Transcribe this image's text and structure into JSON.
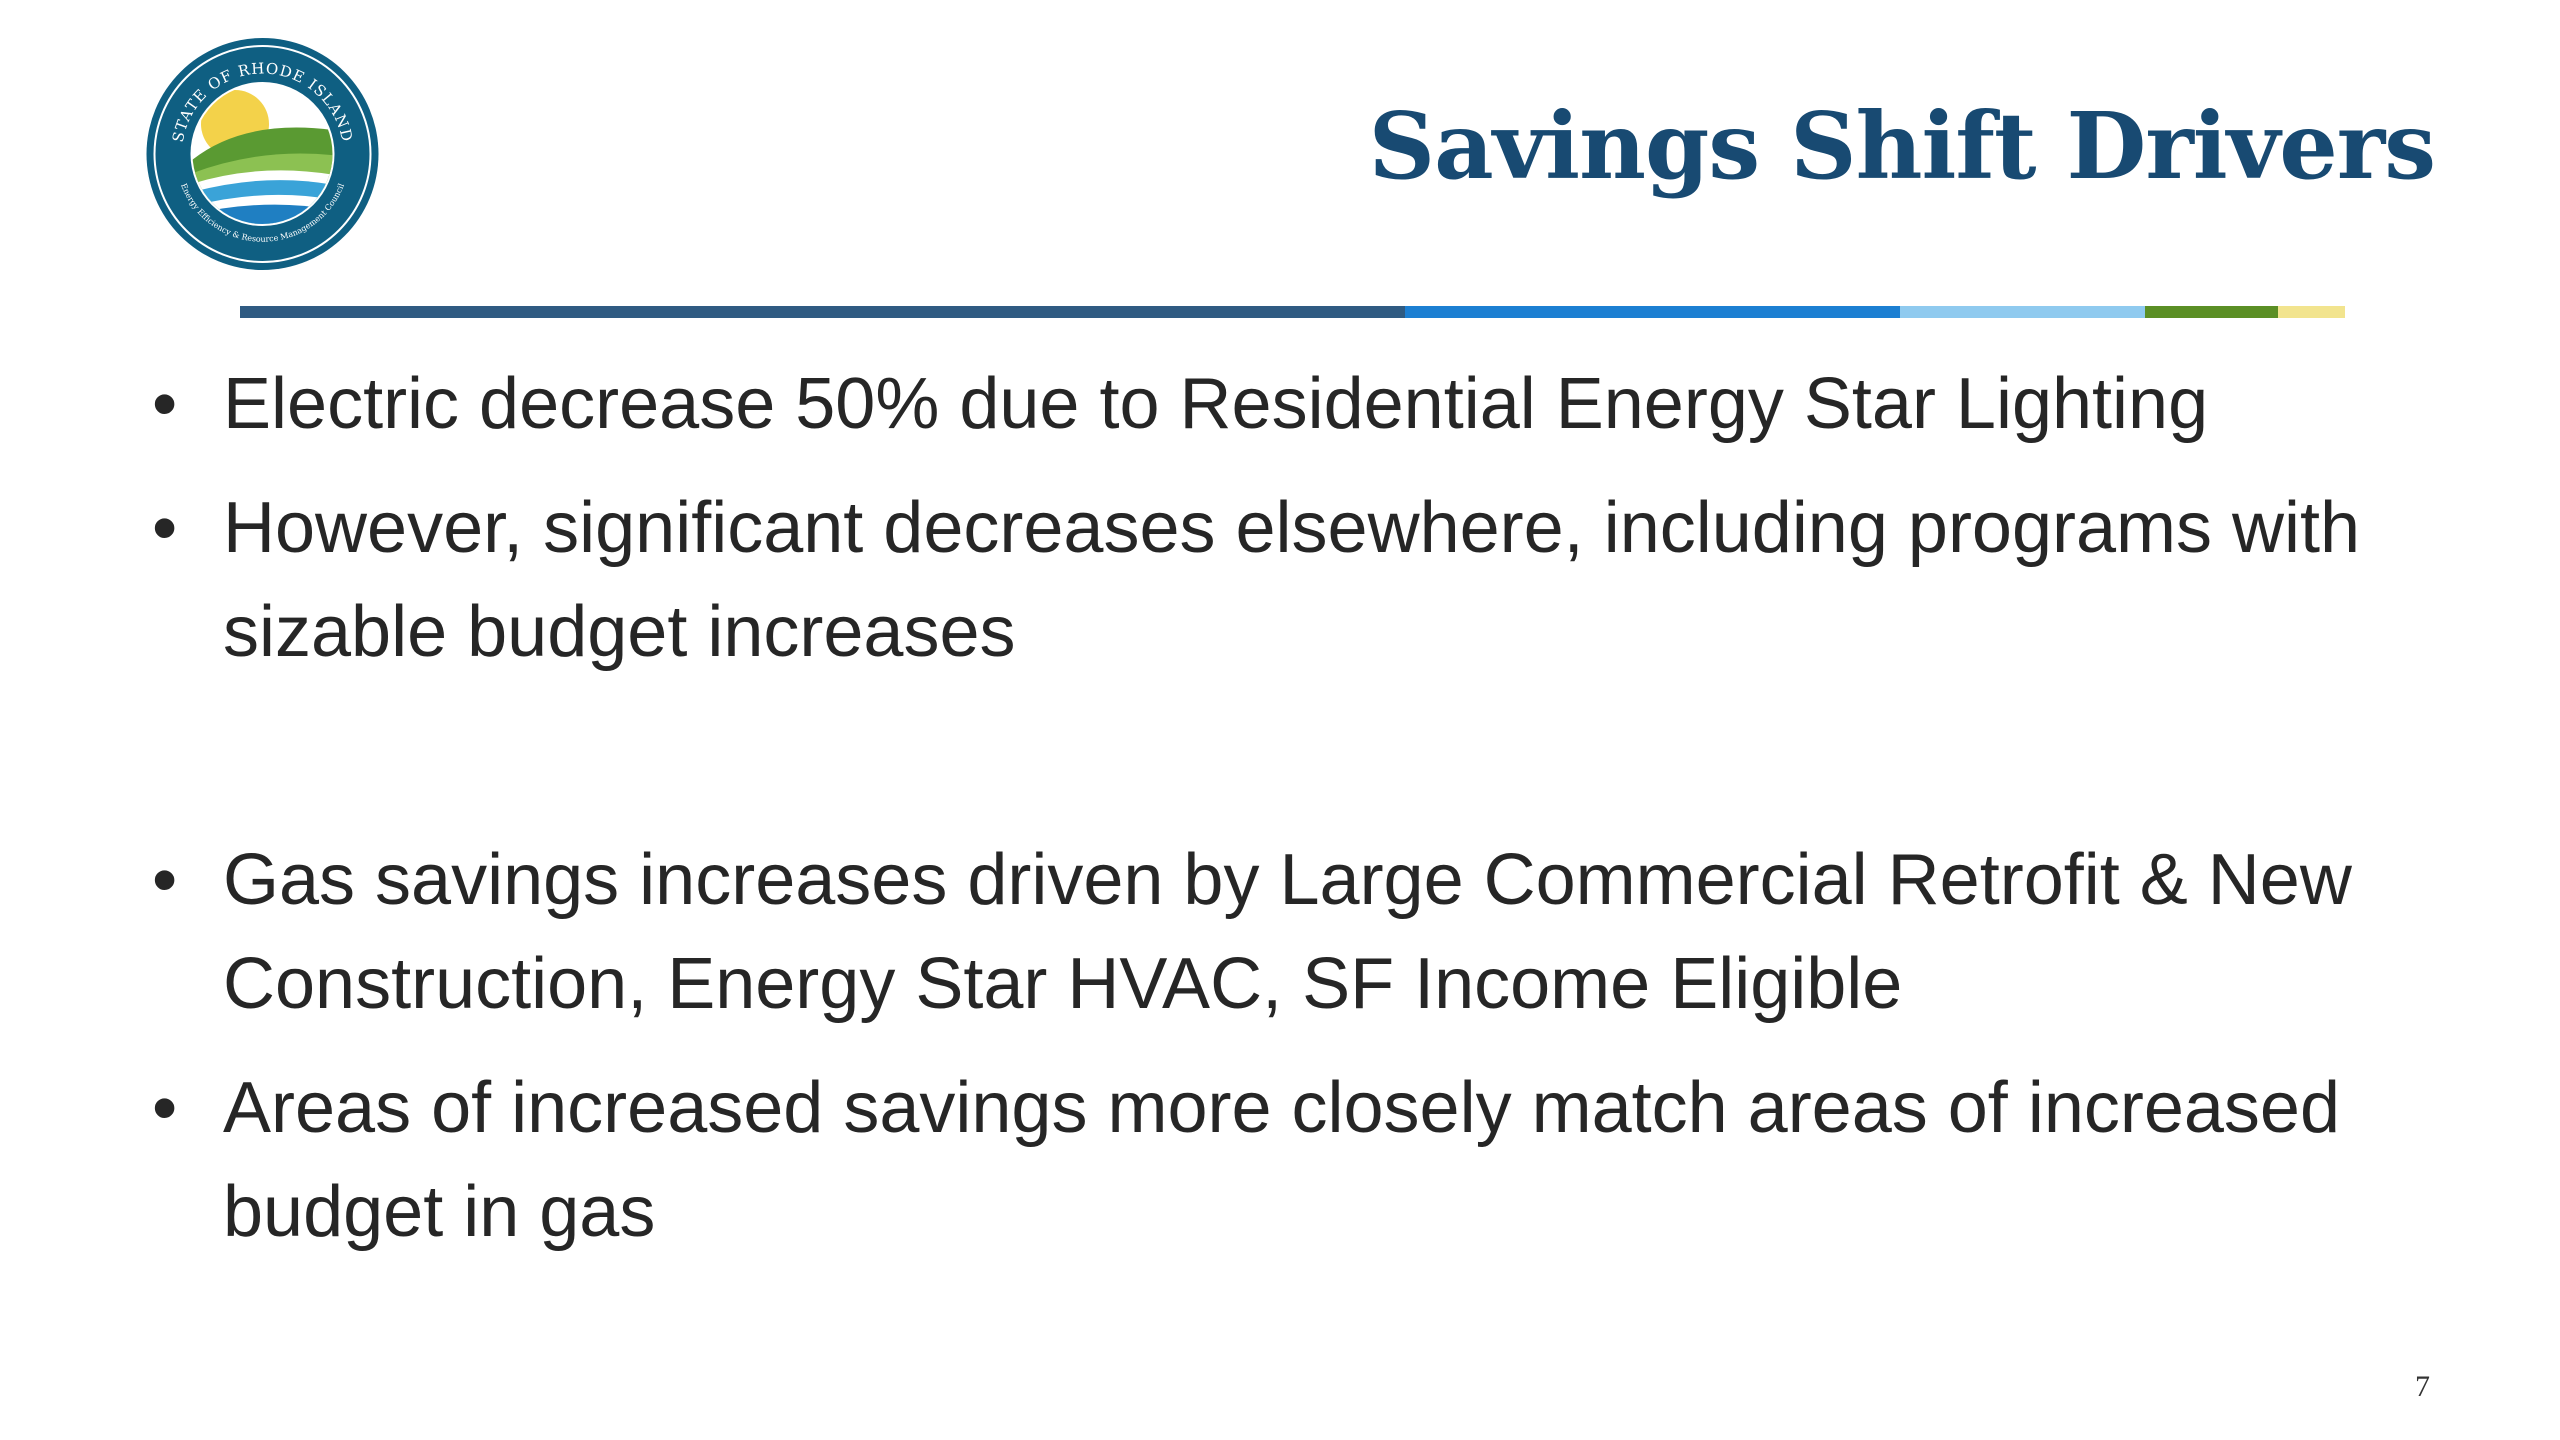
{
  "slide": {
    "title": "Savings Shift Drivers",
    "page_number": "7",
    "bullet_char": "•",
    "bullets": [
      "Electric decrease 50% due to Residential Energy Star Lighting",
      "However, significant decreases elsewhere, including programs with sizable budget increases",
      "Gas savings increases driven by Large Commercial Retrofit & New Construction, Energy Star HVAC, SF Income Eligible",
      "Areas of increased savings more closely match areas of increased budget in gas"
    ]
  },
  "seal": {
    "top_text": "STATE OF RHODE ISLAND",
    "bottom_text": "Energy Efficiency & Resource Management Council"
  },
  "colors": {
    "title": "#184a72",
    "text": "#262626",
    "rule": [
      "#2f5b82",
      "#1c7fd2",
      "#8fcaef",
      "#5b8f25",
      "#f2e48e"
    ],
    "seal_ring": "#0f5f82",
    "seal_sun": "#f3d24a",
    "seal_hill": "#5a9a32",
    "seal_water": "#3aa3d8"
  }
}
